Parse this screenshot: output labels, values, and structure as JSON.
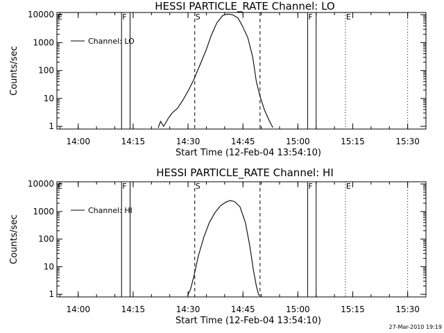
{
  "chart_data": [
    {
      "type": "line",
      "title": "HESSI PARTICLE_RATE Channel: LO",
      "xlabel": "Start Time (12-Feb-04 13:54:10)",
      "ylabel": "Counts/sec",
      "y_scale": "log",
      "ylim": [
        0.8,
        12000
      ],
      "xlim": [
        "13:54:10",
        "15:35:00"
      ],
      "x_ticks": [
        "14:00",
        "14:15",
        "14:30",
        "14:45",
        "15:00",
        "15:15",
        "15:30"
      ],
      "y_ticks": [
        "1",
        "10",
        "100",
        "1000",
        "10000"
      ],
      "legend": {
        "position": "top-left",
        "entries": [
          "Channel: LO"
        ]
      },
      "markers": [
        {
          "label": "E",
          "time": "13:54:10",
          "style": "dotted"
        },
        {
          "label": "F",
          "time": "14:11:50",
          "style": "solid"
        },
        {
          "label": "",
          "time": "14:14:10",
          "style": "solid"
        },
        {
          "label": "S",
          "time": "14:31:50",
          "style": "dashed"
        },
        {
          "label": "",
          "time": "14:49:40",
          "style": "dashed"
        },
        {
          "label": "F",
          "time": "15:02:40",
          "style": "solid"
        },
        {
          "label": "",
          "time": "15:05:00",
          "style": "solid"
        },
        {
          "label": "E",
          "time": "15:13:00",
          "style": "dotted"
        },
        {
          "label": "",
          "time": "15:30:00",
          "style": "dotted"
        }
      ],
      "series": [
        {
          "name": "Channel: LO",
          "x": [
            "14:21:50",
            "14:22:30",
            "14:23:20",
            "14:24:40",
            "14:25:40",
            "14:27:10",
            "14:28:40",
            "14:30:10",
            "14:31:30",
            "14:33:10",
            "14:34:50",
            "14:36:20",
            "14:37:50",
            "14:39:30",
            "14:40:50",
            "14:42:10",
            "14:43:40",
            "14:44:50",
            "14:46:20",
            "14:47:40",
            "14:48:40",
            "14:49:40",
            "14:50:50",
            "14:51:50",
            "14:52:40",
            "14:53:10"
          ],
          "y": [
            0.9,
            1.5,
            1.0,
            2.0,
            3.0,
            4.5,
            9,
            20,
            45,
            150,
            500,
            1800,
            5000,
            9500,
            10500,
            10000,
            7500,
            4000,
            1500,
            300,
            40,
            12,
            4,
            2,
            1.2,
            0.9
          ]
        }
      ]
    },
    {
      "type": "line",
      "title": "HESSI PARTICLE_RATE Channel: HI",
      "xlabel": "Start Time (12-Feb-04 13:54:10)",
      "ylabel": "Counts/sec",
      "y_scale": "log",
      "ylim": [
        0.8,
        12000
      ],
      "xlim": [
        "13:54:10",
        "15:35:00"
      ],
      "x_ticks": [
        "14:00",
        "14:15",
        "14:30",
        "14:45",
        "15:00",
        "15:15",
        "15:30"
      ],
      "y_ticks": [
        "1",
        "10",
        "100",
        "1000",
        "10000"
      ],
      "legend": {
        "position": "top-left",
        "entries": [
          "Channel: HI"
        ]
      },
      "markers": [
        {
          "label": "E",
          "time": "13:54:10",
          "style": "dotted"
        },
        {
          "label": "F",
          "time": "14:11:50",
          "style": "solid"
        },
        {
          "label": "",
          "time": "14:14:10",
          "style": "solid"
        },
        {
          "label": "S",
          "time": "14:31:50",
          "style": "dashed"
        },
        {
          "label": "",
          "time": "14:49:40",
          "style": "dashed"
        },
        {
          "label": "F",
          "time": "15:02:40",
          "style": "solid"
        },
        {
          "label": "",
          "time": "15:05:00",
          "style": "solid"
        },
        {
          "label": "E",
          "time": "15:13:00",
          "style": "dotted"
        },
        {
          "label": "",
          "time": "15:30:00",
          "style": "dotted"
        }
      ],
      "series": [
        {
          "name": "Channel: HI",
          "x": [
            "14:29:50",
            "14:30:40",
            "14:31:30",
            "14:32:50",
            "14:34:20",
            "14:35:50",
            "14:37:20",
            "14:38:50",
            "14:40:20",
            "14:41:30",
            "14:42:40",
            "14:44:10",
            "14:45:40",
            "14:46:50",
            "14:47:50",
            "14:48:40",
            "14:49:20"
          ],
          "y": [
            0.9,
            1.5,
            4,
            25,
            120,
            400,
            900,
            1600,
            2200,
            2500,
            2300,
            1500,
            400,
            60,
            8,
            2,
            0.9
          ]
        }
      ]
    }
  ],
  "timestamp": "27-Mar-2010 19:19"
}
